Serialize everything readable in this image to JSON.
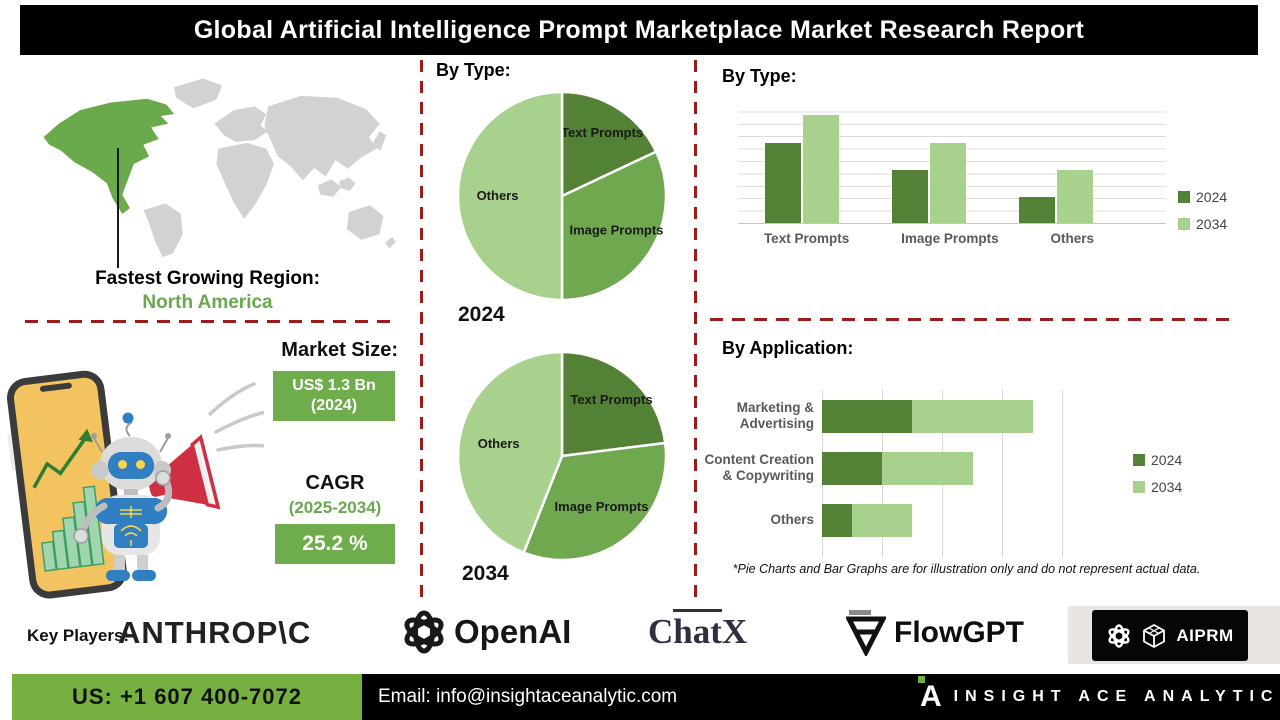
{
  "title": "Global Artificial Intelligence Prompt Marketplace Market Research Report",
  "left_panel": {
    "region_label": "Fastest Growing Region:",
    "region_value": "North America",
    "market_size_label": "Market Size:",
    "market_size_value": "US$ 1.3 Bn",
    "market_size_year": "(2024)",
    "cagr_label": "CAGR",
    "cagr_period": "(2025-2034)",
    "cagr_value": "25.2 %"
  },
  "sections": {
    "pie_title": "By Type:",
    "bar_title": "By Type:",
    "app_title": "By Application:",
    "disclaimer": "*Pie Charts and Bar Graphs are for illustration only and do not represent actual data."
  },
  "chart_data": [
    {
      "type": "pie",
      "year_label": "2024",
      "title": "By Type:",
      "slices": [
        {
          "label": "Text Prompts",
          "value": 18,
          "color": "#538135"
        },
        {
          "label": "Image Prompts",
          "value": 32,
          "color": "#6fa84f"
        },
        {
          "label": "Others",
          "value": 50,
          "color": "#a9d18e"
        }
      ]
    },
    {
      "type": "pie",
      "year_label": "2034",
      "title": "By Type:",
      "slices": [
        {
          "label": "Text Prompts",
          "value": 23,
          "color": "#538135"
        },
        {
          "label": "Image Prompts",
          "value": 33,
          "color": "#6fa84f"
        },
        {
          "label": "Others",
          "value": 44,
          "color": "#a9d18e"
        }
      ]
    },
    {
      "type": "bar",
      "title": "By Type:",
      "categories": [
        "Text Prompts",
        "Image Prompts",
        "Others"
      ],
      "series": [
        {
          "name": "2024",
          "color": "#538135",
          "values": [
            65,
            43,
            21
          ]
        },
        {
          "name": "2034",
          "color": "#a9d18e",
          "values": [
            88,
            65,
            43
          ]
        }
      ],
      "ylim": [
        0,
        100
      ],
      "grid": true,
      "legend_position": "right"
    },
    {
      "type": "bar",
      "subtype": "stacked-horizontal",
      "title": "By Application:",
      "categories": [
        "Marketing & Advertising",
        "Content Creation & Copywriting",
        "Others"
      ],
      "series": [
        {
          "name": "2024",
          "color": "#538135",
          "values": [
            1.5,
            1.0,
            0.5
          ]
        },
        {
          "name": "2034",
          "color": "#a9d18e",
          "values": [
            2.0,
            1.5,
            1.0
          ]
        }
      ],
      "xlim": [
        0,
        4.2
      ],
      "grid": true,
      "legend_position": "right",
      "note": "*Pie Charts and Bar Graphs are for illustration only and do not represent actual data."
    }
  ],
  "key_players": {
    "label": "Key Players:",
    "players": [
      "ANTHROP\\C",
      "OpenAI",
      "ChatX",
      "FlowGPT",
      "AIPRM"
    ]
  },
  "footer": {
    "phone": "US: +1 607 400-7072",
    "email": "Email: info@insightaceanalytic.com",
    "brand": "INSIGHT ACE ANALYTIC",
    "brand_initial": "A"
  },
  "colors": {
    "dark_green": "#538135",
    "mid_green": "#6fa84f",
    "light_green": "#a9d18e",
    "footer_green": "#76b041",
    "dashed_red": "#9e1b1b",
    "title_bg": "#000000"
  }
}
